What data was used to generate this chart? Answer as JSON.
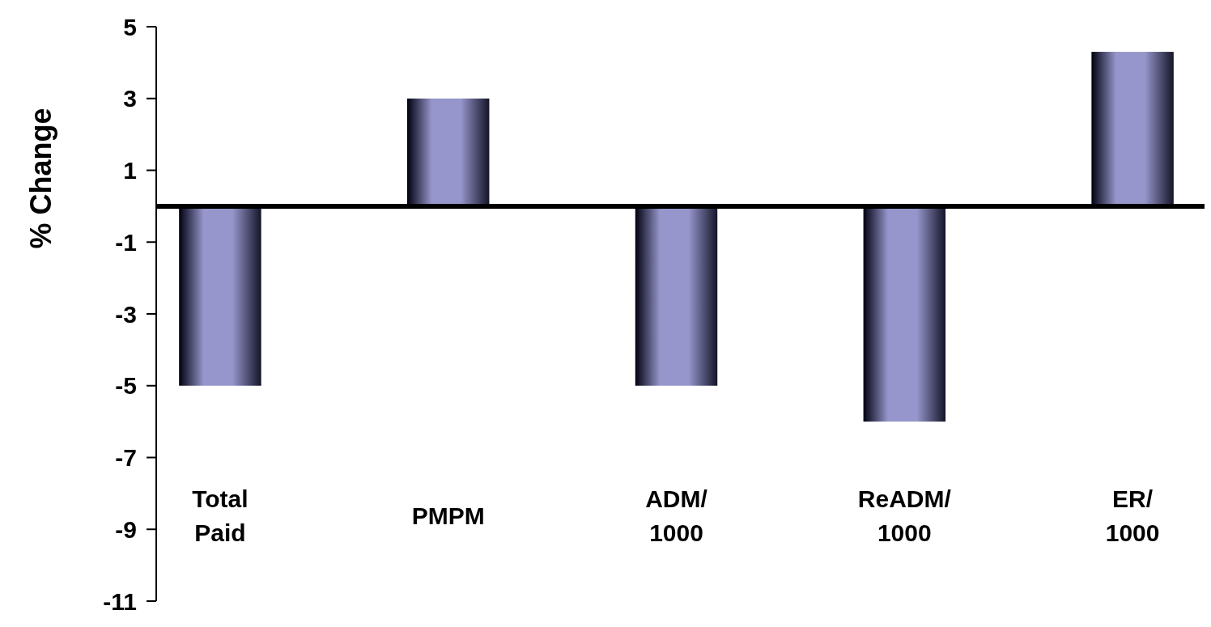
{
  "chart_data": {
    "type": "bar",
    "ylabel": "% Change",
    "categories": [
      "Total Paid",
      "PMPM",
      "ADM/1000",
      "ReADM/1000",
      "ER/1000"
    ],
    "values": [
      -5,
      3,
      -5,
      -6,
      4.3
    ],
    "color": "#9696cc",
    "ylim": [
      -11,
      5
    ],
    "yticks": [
      -11,
      -9,
      -7,
      -5,
      -3,
      -1,
      1,
      3,
      5
    ],
    "grid": false
  }
}
